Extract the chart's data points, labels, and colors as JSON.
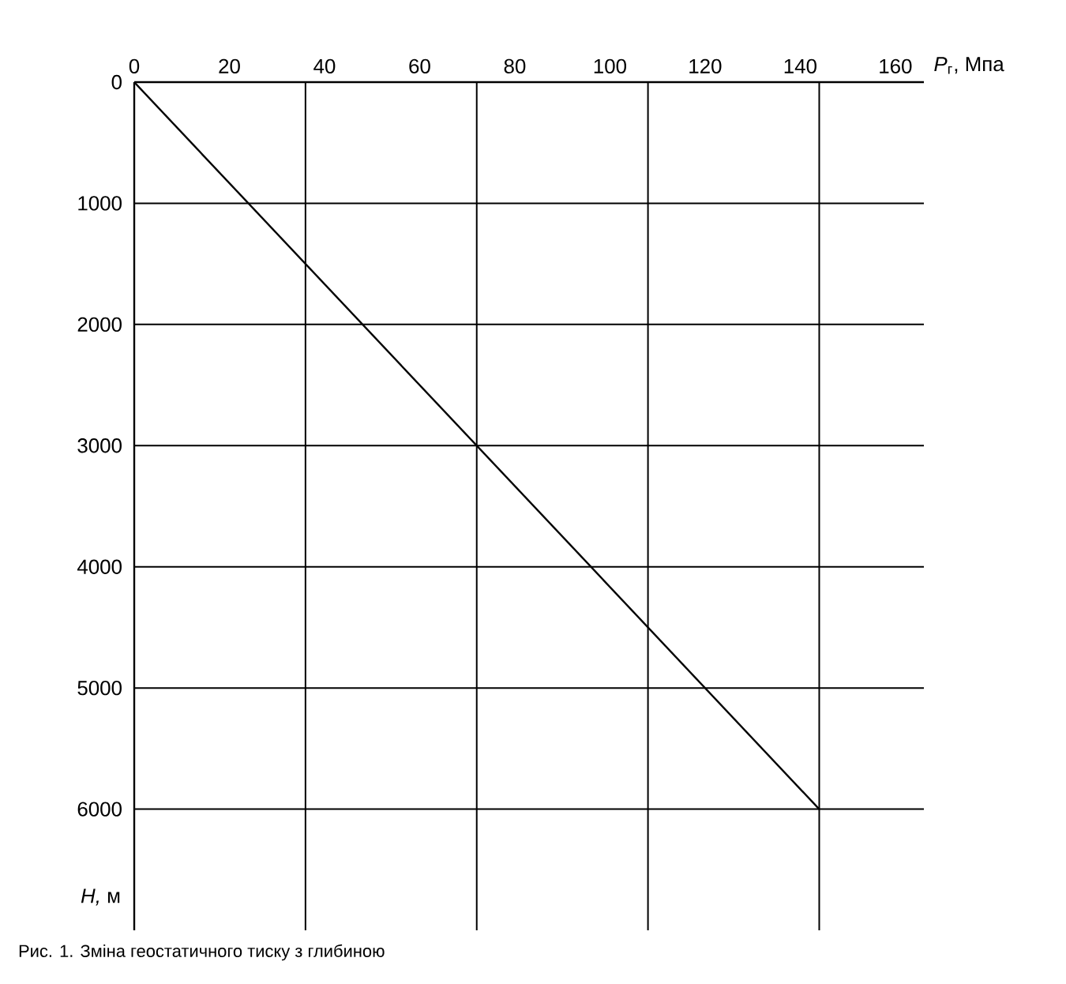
{
  "chart_data": {
    "type": "line",
    "xlabel": "*P*$_{г}$, Мпа",
    "ylabel": "*H,* м",
    "x": [
      0,
      144
    ],
    "values": [
      0,
      6000
    ],
    "color": "#000000",
    "xlim": [
      0,
      166
    ],
    "xticks": [
      0,
      20,
      40,
      60,
      80,
      100,
      120,
      140,
      160
    ],
    "ylim": [
      7000,
      0
    ],
    "yticks": [
      0,
      1000,
      2000,
      3000,
      4000,
      5000,
      6000
    ],
    "grid": "y",
    "marker": "none",
    "line_style": "solid",
    "ref_lines": [
      {
        "axis": "x",
        "value": 36,
        "color": "#000000"
      },
      {
        "axis": "x",
        "value": 72,
        "color": "#000000"
      },
      {
        "axis": "x",
        "value": 108,
        "color": "#000000"
      },
      {
        "axis": "x",
        "value": 144,
        "color": "#000000"
      }
    ],
    "annotations": [
      "Рис. 1.  Зміна геостатичного тиску з глибиною"
    ]
  }
}
